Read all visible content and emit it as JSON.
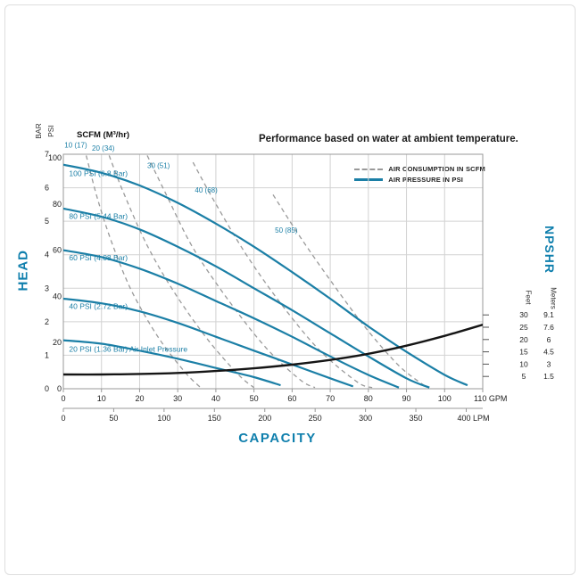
{
  "chart_data": {
    "type": "line",
    "title": "Performance based on water at ambient temperature.",
    "scfm_header": "SCFM (M³/hr)",
    "legend": {
      "air_consumption": "AIR CONSUMPTION IN SCFM",
      "air_pressure": "AIR PRESSURE IN PSI"
    },
    "x_axis": {
      "label": "CAPACITY",
      "gpm_range": [
        0,
        110
      ],
      "ticks_gpm": [
        0,
        10,
        20,
        30,
        40,
        50,
        60,
        70,
        80,
        90,
        100
      ],
      "end_tick_gpm": 110,
      "end_label_gpm": "110 GPM",
      "ticks_lpm": [
        0,
        50,
        100,
        150,
        200,
        250,
        300,
        350
      ],
      "end_tick_lpm": 400,
      "end_label_lpm": "400 LPM"
    },
    "y_axis_left": {
      "label": "HEAD",
      "bar_label": "BAR",
      "psi_label": "PSI",
      "bar_range": [
        0,
        7
      ],
      "bar_ticks": [
        0,
        1,
        2,
        3,
        4,
        5,
        6,
        7
      ],
      "psi_ticks": [
        0,
        20,
        40,
        60,
        80,
        100
      ]
    },
    "y_axis_right": {
      "label": "NPSHR",
      "feet_label": "Feet",
      "meters_label": "Meters",
      "feet_ticks": [
        30,
        25,
        20,
        15,
        10,
        5
      ],
      "meters_ticks": [
        "9.1",
        "7.6",
        "6",
        "4.5",
        "3",
        "1.5"
      ]
    },
    "colors": {
      "curve_blue": "#1b7fa6",
      "accent_blue": "#0f7fad",
      "dashed_gray": "#9a9a9a",
      "npshr_black": "#151515",
      "grid": "#d2d2d2",
      "border": "#999999"
    },
    "air_pressure_curves": [
      {
        "label": "100 PSI (6.8 Bar)",
        "label_gpm": 1.5,
        "label_psi": 92,
        "points": [
          [
            0,
            97
          ],
          [
            10,
            93.5
          ],
          [
            20,
            88
          ],
          [
            30,
            80.5
          ],
          [
            40,
            71.5
          ],
          [
            50,
            61.5
          ],
          [
            60,
            50.5
          ],
          [
            70,
            39
          ],
          [
            80,
            27
          ],
          [
            90,
            16
          ],
          [
            100,
            6
          ],
          [
            106,
            1.5
          ]
        ]
      },
      {
        "label": "80 PSI (5.44 Bar)",
        "label_gpm": 1.5,
        "label_psi": 73.5,
        "points": [
          [
            0,
            78
          ],
          [
            10,
            74.5
          ],
          [
            20,
            69
          ],
          [
            30,
            61.5
          ],
          [
            40,
            53
          ],
          [
            50,
            43.5
          ],
          [
            60,
            34
          ],
          [
            70,
            24
          ],
          [
            80,
            14
          ],
          [
            90,
            4.5
          ],
          [
            96,
            0.5
          ]
        ]
      },
      {
        "label": "60 PSI (4.08 Bar)",
        "label_gpm": 1.5,
        "label_psi": 55.5,
        "points": [
          [
            0,
            60
          ],
          [
            10,
            57
          ],
          [
            20,
            52
          ],
          [
            30,
            45.5
          ],
          [
            40,
            38
          ],
          [
            50,
            30.5
          ],
          [
            60,
            22.5
          ],
          [
            70,
            14
          ],
          [
            80,
            6
          ],
          [
            88,
            0.5
          ]
        ]
      },
      {
        "label": "40 PSI (2.72 Bar)",
        "label_gpm": 1.5,
        "label_psi": 34.5,
        "points": [
          [
            0,
            39
          ],
          [
            10,
            37
          ],
          [
            20,
            33.5
          ],
          [
            30,
            28.5
          ],
          [
            40,
            22.5
          ],
          [
            50,
            16.5
          ],
          [
            60,
            10.5
          ],
          [
            70,
            4.5
          ],
          [
            76,
            1
          ]
        ]
      },
      {
        "label": "20 PSI (1.36 Bar) Air Inlet Pressure",
        "label_gpm": 1.5,
        "label_psi": 16,
        "points": [
          [
            0,
            21
          ],
          [
            10,
            19.5
          ],
          [
            20,
            16.5
          ],
          [
            30,
            13
          ],
          [
            40,
            9
          ],
          [
            50,
            5
          ],
          [
            57,
            1.5
          ]
        ]
      }
    ],
    "air_consumption_curves": [
      {
        "label": "10 (17)",
        "label_gpm": 0.3,
        "label_psi": 104.5,
        "points": [
          [
            6,
            101
          ],
          [
            9,
            82
          ],
          [
            13,
            62
          ],
          [
            18,
            42
          ],
          [
            25,
            22
          ],
          [
            32,
            7
          ],
          [
            36,
            0.5
          ]
        ]
      },
      {
        "label": "20 (34)",
        "label_gpm": 7.5,
        "label_psi": 103,
        "points": [
          [
            12,
            101
          ],
          [
            16,
            84
          ],
          [
            22,
            62
          ],
          [
            29,
            42
          ],
          [
            38,
            21
          ],
          [
            46,
            6
          ],
          [
            50,
            0.5
          ]
        ]
      },
      {
        "label": "30 (51)",
        "label_gpm": 22,
        "label_psi": 95.5,
        "points": [
          [
            22,
            101
          ],
          [
            27,
            84
          ],
          [
            34,
            61
          ],
          [
            43,
            39
          ],
          [
            53,
            18
          ],
          [
            62,
            4
          ],
          [
            66,
            0.5
          ]
        ]
      },
      {
        "label": "40 (68)",
        "label_gpm": 34.5,
        "label_psi": 85,
        "points": [
          [
            34,
            98
          ],
          [
            40,
            80
          ],
          [
            48,
            58
          ],
          [
            57,
            37
          ],
          [
            67,
            17
          ],
          [
            77,
            3
          ],
          [
            81,
            0.5
          ]
        ]
      },
      {
        "label": "50 (85)",
        "label_gpm": 55.5,
        "label_psi": 67.5,
        "points": [
          [
            55,
            84
          ],
          [
            62,
            66
          ],
          [
            70,
            47
          ],
          [
            79,
            27
          ],
          [
            88,
            10
          ],
          [
            95,
            1
          ]
        ]
      }
    ],
    "npshr_curve": {
      "points_gpm_feet": [
        [
          0,
          5.8
        ],
        [
          10,
          5.8
        ],
        [
          20,
          6
        ],
        [
          30,
          6.4
        ],
        [
          40,
          7.2
        ],
        [
          50,
          8.3
        ],
        [
          60,
          9.8
        ],
        [
          70,
          11.7
        ],
        [
          80,
          14.2
        ],
        [
          90,
          17.5
        ],
        [
          100,
          21.5
        ],
        [
          110,
          26
        ]
      ]
    }
  }
}
